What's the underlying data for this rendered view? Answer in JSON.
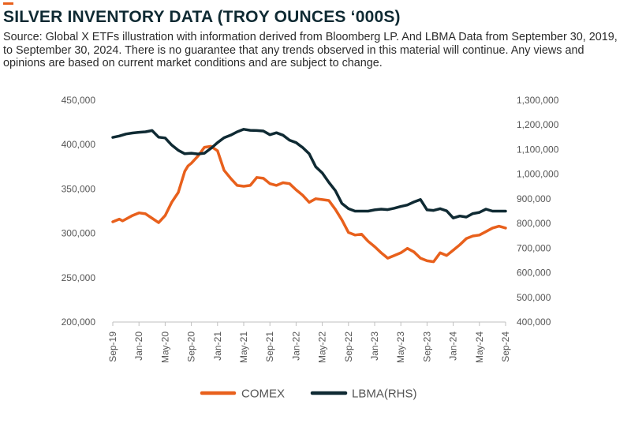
{
  "title": "SILVER INVENTORY DATA (TROY OUNCES ‘000S)",
  "source": "Source: Global X ETFs illustration with information derived from Bloomberg LP. And LBMA Data from September 30, 2019, to September 30, 2024. There is no guarantee that any trends observed in this material will continue. Any views and opinions are based on current market conditions and are subject to change.",
  "colors": {
    "accent": "#e8601c",
    "comex": "#e8601c",
    "lbma": "#0f2a33"
  },
  "chart_data": {
    "type": "line",
    "title": "SILVER INVENTORY DATA (TROY OUNCES ‘000S)",
    "x_tick_labels": [
      "Sep-19",
      "Jan-20",
      "May-20",
      "Sep-20",
      "Jan-21",
      "May-21",
      "Sep-21",
      "Jan-22",
      "May-22",
      "Sep-22",
      "Jan-23",
      "May-23",
      "Sep-23",
      "Jan-24",
      "May-24",
      "Sep-24"
    ],
    "x_range_months": [
      0,
      60
    ],
    "y_left": {
      "ylim": [
        200000,
        450000
      ],
      "tick_labels": [
        "200,000",
        "250,000",
        "300,000",
        "350,000",
        "400,000",
        "450,000"
      ],
      "ticks": [
        200000,
        250000,
        300000,
        350000,
        400000,
        450000
      ]
    },
    "y_right": {
      "ylim": [
        400000,
        1300000
      ],
      "tick_labels": [
        "400,000",
        "500,000",
        "600,000",
        "700,000",
        "800,000",
        "900,000",
        "1,000,000",
        "1,100,000",
        "1,200,000",
        "1,300,000"
      ],
      "ticks": [
        400000,
        500000,
        600000,
        700000,
        800000,
        900000,
        1000000,
        1100000,
        1200000,
        1300000
      ]
    },
    "legend": {
      "position": "bottom-center"
    },
    "series": [
      {
        "name": "COMEX",
        "axis": "left",
        "color": "#e8601c",
        "x": [
          0,
          1,
          1.5,
          2,
          3,
          4,
          5,
          6,
          7,
          8,
          9,
          10,
          11,
          11.5,
          12,
          13,
          14,
          15,
          16,
          17,
          18,
          19,
          20,
          21,
          22,
          23,
          24,
          25,
          26,
          27,
          28,
          29,
          30,
          31,
          32,
          33,
          34,
          35,
          36,
          37,
          38,
          39,
          40,
          41,
          42,
          43,
          44,
          45,
          46,
          47,
          48,
          49,
          50,
          51,
          52,
          53,
          54,
          55,
          56,
          57,
          58,
          59,
          60
        ],
        "values": [
          313000,
          316000,
          314000,
          316000,
          320000,
          323000,
          322000,
          317000,
          312000,
          320000,
          335000,
          346000,
          370000,
          376000,
          379000,
          387000,
          397000,
          398000,
          393000,
          371000,
          362000,
          354000,
          353000,
          354000,
          363000,
          362000,
          356000,
          354000,
          357000,
          356000,
          349000,
          343000,
          335000,
          339000,
          338000,
          337000,
          327000,
          315000,
          301000,
          298000,
          299000,
          291000,
          285000,
          278000,
          272000,
          275000,
          278000,
          283000,
          279000,
          272000,
          269000,
          268000,
          278000,
          275000,
          281000,
          287000,
          294000,
          297000,
          298000,
          302000,
          306000,
          308000,
          306000
        ]
      },
      {
        "name": "LBMA(RHS)",
        "axis": "right",
        "color": "#0f2a33",
        "x": [
          0,
          1,
          2,
          3,
          4,
          5,
          6,
          7,
          8,
          9,
          10,
          11,
          12,
          13,
          14,
          15,
          16,
          17,
          18,
          19,
          20,
          21,
          22,
          23,
          24,
          25,
          26,
          27,
          28,
          29,
          30,
          31,
          32,
          33,
          34,
          35,
          36,
          37,
          38,
          39,
          40,
          41,
          42,
          43,
          44,
          45,
          46,
          47,
          48,
          49,
          50,
          51,
          52,
          53,
          54,
          55,
          56,
          57,
          58,
          59,
          60
        ],
        "values": [
          1149000,
          1155000,
          1163000,
          1167000,
          1170000,
          1172000,
          1177000,
          1150000,
          1147000,
          1118000,
          1097000,
          1083000,
          1085000,
          1082000,
          1085000,
          1105000,
          1128000,
          1148000,
          1158000,
          1172000,
          1182000,
          1178000,
          1177000,
          1175000,
          1160000,
          1168000,
          1158000,
          1138000,
          1128000,
          1108000,
          1083000,
          1030000,
          1005000,
          967000,
          933000,
          881000,
          860000,
          850000,
          850000,
          850000,
          855000,
          858000,
          856000,
          862000,
          869000,
          875000,
          887000,
          897000,
          855000,
          853000,
          860000,
          851000,
          822000,
          830000,
          826000,
          840000,
          845000,
          858000,
          850000,
          850000,
          850000
        ]
      }
    ]
  }
}
